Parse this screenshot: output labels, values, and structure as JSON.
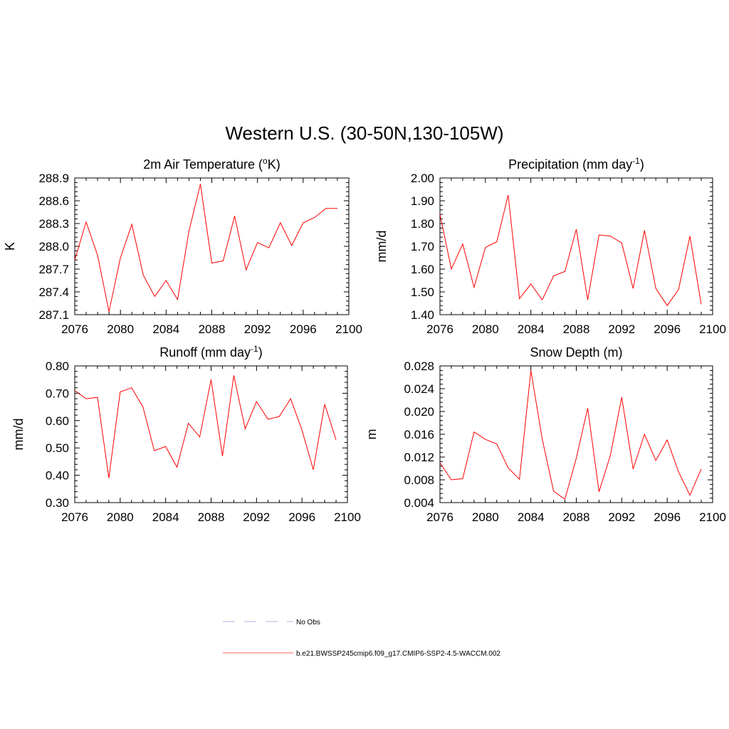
{
  "title": "Western U.S. (30-50N,130-105W)",
  "chart_data": [
    {
      "type": "line",
      "title": "2m Air Temperature (°K)",
      "title_parts": {
        "main": "2m Air Temperature (",
        "sup": "o",
        "tail": "K)"
      },
      "ylabel": "K",
      "xlim": [
        2076,
        2100
      ],
      "ylim": [
        287.1,
        288.9
      ],
      "xticks": [
        2076,
        2080,
        2084,
        2088,
        2092,
        2096,
        2100
      ],
      "yticks": [
        287.1,
        287.4,
        287.7,
        288.0,
        288.3,
        288.6,
        288.9
      ],
      "ytick_labels": [
        "287.1",
        "287.4",
        "287.7",
        "288.0",
        "288.3",
        "288.6",
        "288.9"
      ],
      "series": [
        {
          "color": "#ff0000",
          "x": [
            2076,
            2077,
            2078,
            2079,
            2080,
            2081,
            2082,
            2083,
            2084,
            2085,
            2086,
            2087,
            2088,
            2089,
            2090,
            2091,
            2092,
            2093,
            2094,
            2095,
            2096,
            2097,
            2098,
            2099
          ],
          "values": [
            287.82,
            288.32,
            287.88,
            287.14,
            287.85,
            288.29,
            287.62,
            287.34,
            287.55,
            287.3,
            288.2,
            288.82,
            287.78,
            287.81,
            288.4,
            287.69,
            288.05,
            287.98,
            288.31,
            288.01,
            288.31,
            288.38,
            288.5,
            288.5
          ]
        }
      ]
    },
    {
      "type": "line",
      "title": "Precipitation (mm day-1)",
      "title_parts": {
        "main": "Precipitation (mm day",
        "sup": "-1",
        "tail": ")"
      },
      "ylabel": "mm/d",
      "xlim": [
        2076,
        2100
      ],
      "ylim": [
        1.4,
        2.0
      ],
      "xticks": [
        2076,
        2080,
        2084,
        2088,
        2092,
        2096,
        2100
      ],
      "yticks": [
        1.4,
        1.5,
        1.6,
        1.7,
        1.8,
        1.9,
        2.0
      ],
      "ytick_labels": [
        "1.40",
        "1.50",
        "1.60",
        "1.70",
        "1.80",
        "1.90",
        "2.00"
      ],
      "series": [
        {
          "color": "#ff0000",
          "x": [
            2076,
            2077,
            2078,
            2079,
            2080,
            2081,
            2082,
            2083,
            2084,
            2085,
            2086,
            2087,
            2088,
            2089,
            2090,
            2091,
            2092,
            2093,
            2094,
            2095,
            2096,
            2097,
            2098,
            2099
          ],
          "values": [
            1.84,
            1.6,
            1.71,
            1.52,
            1.695,
            1.72,
            1.925,
            1.47,
            1.535,
            1.465,
            1.57,
            1.59,
            1.775,
            1.465,
            1.75,
            1.745,
            1.715,
            1.515,
            1.77,
            1.515,
            1.44,
            1.51,
            1.745,
            1.445
          ]
        }
      ]
    },
    {
      "type": "line",
      "title": "Runoff (mm day-1)",
      "title_parts": {
        "main": "Runoff (mm day",
        "sup": "-1",
        "tail": ")"
      },
      "ylabel": "mm/d",
      "xlim": [
        2076,
        2100
      ],
      "ylim": [
        0.3,
        0.8
      ],
      "xticks": [
        2076,
        2080,
        2084,
        2088,
        2092,
        2096,
        2100
      ],
      "yticks": [
        0.3,
        0.4,
        0.5,
        0.6,
        0.7,
        0.8
      ],
      "ytick_labels": [
        "0.30",
        "0.40",
        "0.50",
        "0.60",
        "0.70",
        "0.80"
      ],
      "series": [
        {
          "color": "#ff0000",
          "x": [
            2076,
            2077,
            2078,
            2079,
            2080,
            2081,
            2082,
            2083,
            2084,
            2085,
            2086,
            2087,
            2088,
            2089,
            2090,
            2091,
            2092,
            2093,
            2094,
            2095,
            2096,
            2097,
            2098,
            2099
          ],
          "values": [
            0.71,
            0.68,
            0.685,
            0.39,
            0.705,
            0.72,
            0.65,
            0.49,
            0.505,
            0.43,
            0.59,
            0.54,
            0.75,
            0.47,
            0.765,
            0.57,
            0.67,
            0.605,
            0.615,
            0.68,
            0.565,
            0.42,
            0.66,
            0.53
          ]
        }
      ]
    },
    {
      "type": "line",
      "title": "Snow Depth (m)",
      "title_parts": {
        "main": "Snow Depth (m)",
        "sup": "",
        "tail": ""
      },
      "ylabel": "m",
      "xlim": [
        2076,
        2100
      ],
      "ylim": [
        0.004,
        0.028
      ],
      "xticks": [
        2076,
        2080,
        2084,
        2088,
        2092,
        2096,
        2100
      ],
      "yticks": [
        0.004,
        0.008,
        0.012,
        0.016,
        0.02,
        0.024,
        0.028
      ],
      "ytick_labels": [
        "0.004",
        "0.008",
        "0.012",
        "0.016",
        "0.020",
        "0.024",
        "0.028"
      ],
      "series": [
        {
          "color": "#ff0000",
          "x": [
            2076,
            2077,
            2078,
            2079,
            2080,
            2081,
            2082,
            2083,
            2084,
            2085,
            2086,
            2087,
            2088,
            2089,
            2090,
            2091,
            2092,
            2093,
            2094,
            2095,
            2096,
            2097,
            2098,
            2099
          ],
          "values": [
            0.011,
            0.008,
            0.0082,
            0.0164,
            0.0151,
            0.0143,
            0.0101,
            0.0081,
            0.0272,
            0.0152,
            0.006,
            0.0046,
            0.0118,
            0.0206,
            0.0059,
            0.0123,
            0.0225,
            0.0099,
            0.016,
            0.0114,
            0.015,
            0.0094,
            0.0053,
            0.0099
          ]
        }
      ]
    }
  ],
  "legend": {
    "entries": [
      {
        "label": "No Obs",
        "color": "#b0b0e8",
        "style": "dashed"
      },
      {
        "label": "b.e21.BWSSP245cmip6.f09_g17.CMIP6-SSP2-4.5-WACCM.002",
        "color": "#ff6060",
        "style": "solid"
      }
    ]
  }
}
